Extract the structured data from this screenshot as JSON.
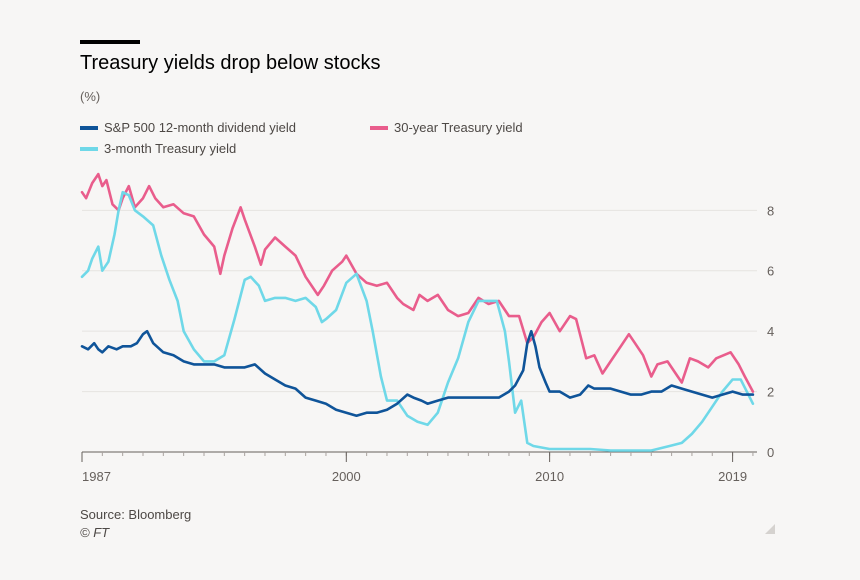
{
  "chart_data": {
    "type": "line",
    "title": "Treasury yields drop below stocks",
    "unit_label": "(%)",
    "xlabel": "",
    "ylabel": "(%)",
    "xlim": [
      1987,
      2020.2
    ],
    "ylim": [
      0,
      9.5
    ],
    "yticks": [
      0,
      2,
      4,
      6,
      8
    ],
    "xtick_labels": [
      {
        "x": 1987,
        "label": "1987"
      },
      {
        "x": 2000,
        "label": "2000"
      },
      {
        "x": 2010,
        "label": "2010"
      },
      {
        "x": 2019,
        "label": "2019"
      }
    ],
    "grid": true,
    "legend_position": "top-left",
    "series": [
      {
        "name": "S&P 500 12-month dividend yield",
        "color": "#0f5499",
        "points": [
          [
            1987.0,
            3.5
          ],
          [
            1987.3,
            3.4
          ],
          [
            1987.6,
            3.6
          ],
          [
            1987.8,
            3.4
          ],
          [
            1988.0,
            3.3
          ],
          [
            1988.3,
            3.5
          ],
          [
            1988.7,
            3.4
          ],
          [
            1989.0,
            3.5
          ],
          [
            1989.4,
            3.5
          ],
          [
            1989.7,
            3.6
          ],
          [
            1990.0,
            3.9
          ],
          [
            1990.2,
            4.0
          ],
          [
            1990.5,
            3.6
          ],
          [
            1991.0,
            3.3
          ],
          [
            1991.5,
            3.2
          ],
          [
            1992.0,
            3.0
          ],
          [
            1992.5,
            2.9
          ],
          [
            1993.0,
            2.9
          ],
          [
            1993.5,
            2.9
          ],
          [
            1994.0,
            2.8
          ],
          [
            1994.5,
            2.8
          ],
          [
            1995.0,
            2.8
          ],
          [
            1995.5,
            2.9
          ],
          [
            1996.0,
            2.6
          ],
          [
            1996.5,
            2.4
          ],
          [
            1997.0,
            2.2
          ],
          [
            1997.5,
            2.1
          ],
          [
            1998.0,
            1.8
          ],
          [
            1998.5,
            1.7
          ],
          [
            1999.0,
            1.6
          ],
          [
            1999.5,
            1.4
          ],
          [
            2000.0,
            1.3
          ],
          [
            2000.5,
            1.2
          ],
          [
            2001.0,
            1.3
          ],
          [
            2001.5,
            1.3
          ],
          [
            2002.0,
            1.4
          ],
          [
            2002.5,
            1.6
          ],
          [
            2003.0,
            1.9
          ],
          [
            2003.3,
            1.8
          ],
          [
            2003.7,
            1.7
          ],
          [
            2004.0,
            1.6
          ],
          [
            2004.5,
            1.7
          ],
          [
            2005.0,
            1.8
          ],
          [
            2005.5,
            1.8
          ],
          [
            2006.0,
            1.8
          ],
          [
            2006.5,
            1.8
          ],
          [
            2007.0,
            1.8
          ],
          [
            2007.5,
            1.8
          ],
          [
            2008.0,
            2.0
          ],
          [
            2008.3,
            2.2
          ],
          [
            2008.7,
            2.7
          ],
          [
            2008.9,
            3.6
          ],
          [
            2009.1,
            4.0
          ],
          [
            2009.3,
            3.5
          ],
          [
            2009.5,
            2.8
          ],
          [
            2009.8,
            2.3
          ],
          [
            2010.0,
            2.0
          ],
          [
            2010.5,
            2.0
          ],
          [
            2011.0,
            1.8
          ],
          [
            2011.5,
            1.9
          ],
          [
            2011.9,
            2.2
          ],
          [
            2012.2,
            2.1
          ],
          [
            2012.5,
            2.1
          ],
          [
            2013.0,
            2.1
          ],
          [
            2013.5,
            2.0
          ],
          [
            2014.0,
            1.9
          ],
          [
            2014.5,
            1.9
          ],
          [
            2015.0,
            2.0
          ],
          [
            2015.5,
            2.0
          ],
          [
            2016.0,
            2.2
          ],
          [
            2016.5,
            2.1
          ],
          [
            2017.0,
            2.0
          ],
          [
            2017.5,
            1.9
          ],
          [
            2018.0,
            1.8
          ],
          [
            2018.5,
            1.9
          ],
          [
            2019.0,
            2.0
          ],
          [
            2019.5,
            1.9
          ],
          [
            2020.0,
            1.9
          ]
        ]
      },
      {
        "name": "30-year Treasury yield",
        "color": "#e95d8c",
        "points": [
          [
            1987.0,
            8.6
          ],
          [
            1987.2,
            8.4
          ],
          [
            1987.5,
            8.9
          ],
          [
            1987.8,
            9.2
          ],
          [
            1988.0,
            8.8
          ],
          [
            1988.2,
            9.0
          ],
          [
            1988.5,
            8.2
          ],
          [
            1988.8,
            8.0
          ],
          [
            1989.0,
            8.4
          ],
          [
            1989.3,
            8.8
          ],
          [
            1989.6,
            8.1
          ],
          [
            1990.0,
            8.4
          ],
          [
            1990.3,
            8.8
          ],
          [
            1990.6,
            8.4
          ],
          [
            1991.0,
            8.1
          ],
          [
            1991.5,
            8.2
          ],
          [
            1992.0,
            7.9
          ],
          [
            1992.5,
            7.8
          ],
          [
            1993.0,
            7.2
          ],
          [
            1993.5,
            6.8
          ],
          [
            1993.8,
            5.9
          ],
          [
            1994.0,
            6.5
          ],
          [
            1994.4,
            7.4
          ],
          [
            1994.8,
            8.1
          ],
          [
            1995.0,
            7.7
          ],
          [
            1995.5,
            6.8
          ],
          [
            1995.8,
            6.2
          ],
          [
            1996.0,
            6.7
          ],
          [
            1996.5,
            7.1
          ],
          [
            1997.0,
            6.8
          ],
          [
            1997.5,
            6.5
          ],
          [
            1998.0,
            5.8
          ],
          [
            1998.6,
            5.2
          ],
          [
            1998.9,
            5.5
          ],
          [
            1999.3,
            6.0
          ],
          [
            1999.8,
            6.3
          ],
          [
            2000.0,
            6.5
          ],
          [
            2000.5,
            5.9
          ],
          [
            2001.0,
            5.6
          ],
          [
            2001.5,
            5.5
          ],
          [
            2002.0,
            5.6
          ],
          [
            2002.5,
            5.1
          ],
          [
            2002.8,
            4.9
          ],
          [
            2003.3,
            4.7
          ],
          [
            2003.6,
            5.2
          ],
          [
            2004.0,
            5.0
          ],
          [
            2004.5,
            5.2
          ],
          [
            2005.0,
            4.7
          ],
          [
            2005.5,
            4.5
          ],
          [
            2006.0,
            4.6
          ],
          [
            2006.5,
            5.1
          ],
          [
            2007.0,
            4.9
          ],
          [
            2007.5,
            5.0
          ],
          [
            2008.0,
            4.5
          ],
          [
            2008.5,
            4.5
          ],
          [
            2008.9,
            3.6
          ],
          [
            2009.2,
            3.8
          ],
          [
            2009.6,
            4.3
          ],
          [
            2010.0,
            4.6
          ],
          [
            2010.5,
            4.0
          ],
          [
            2011.0,
            4.5
          ],
          [
            2011.3,
            4.4
          ],
          [
            2011.8,
            3.1
          ],
          [
            2012.2,
            3.2
          ],
          [
            2012.6,
            2.6
          ],
          [
            2013.0,
            3.0
          ],
          [
            2013.5,
            3.5
          ],
          [
            2013.9,
            3.9
          ],
          [
            2014.2,
            3.6
          ],
          [
            2014.6,
            3.2
          ],
          [
            2015.0,
            2.5
          ],
          [
            2015.3,
            2.9
          ],
          [
            2015.8,
            3.0
          ],
          [
            2016.3,
            2.5
          ],
          [
            2016.5,
            2.3
          ],
          [
            2016.9,
            3.1
          ],
          [
            2017.3,
            3.0
          ],
          [
            2017.8,
            2.8
          ],
          [
            2018.2,
            3.1
          ],
          [
            2018.9,
            3.3
          ],
          [
            2019.3,
            2.9
          ],
          [
            2019.6,
            2.5
          ],
          [
            2020.0,
            2.0
          ]
        ]
      },
      {
        "name": "3-month Treasury yield",
        "color": "#6fd8e8",
        "points": [
          [
            1987.0,
            5.8
          ],
          [
            1987.3,
            6.0
          ],
          [
            1987.5,
            6.4
          ],
          [
            1987.8,
            6.8
          ],
          [
            1988.0,
            6.0
          ],
          [
            1988.3,
            6.3
          ],
          [
            1988.6,
            7.2
          ],
          [
            1988.8,
            8.0
          ],
          [
            1989.0,
            8.6
          ],
          [
            1989.3,
            8.5
          ],
          [
            1989.6,
            8.0
          ],
          [
            1990.0,
            7.8
          ],
          [
            1990.5,
            7.5
          ],
          [
            1990.9,
            6.5
          ],
          [
            1991.3,
            5.7
          ],
          [
            1991.7,
            5.0
          ],
          [
            1992.0,
            4.0
          ],
          [
            1992.5,
            3.4
          ],
          [
            1993.0,
            3.0
          ],
          [
            1993.5,
            3.0
          ],
          [
            1994.0,
            3.2
          ],
          [
            1994.5,
            4.4
          ],
          [
            1995.0,
            5.7
          ],
          [
            1995.3,
            5.8
          ],
          [
            1995.7,
            5.5
          ],
          [
            1996.0,
            5.0
          ],
          [
            1996.5,
            5.1
          ],
          [
            1997.0,
            5.1
          ],
          [
            1997.5,
            5.0
          ],
          [
            1998.0,
            5.1
          ],
          [
            1998.5,
            4.8
          ],
          [
            1998.8,
            4.3
          ],
          [
            1999.0,
            4.4
          ],
          [
            1999.5,
            4.7
          ],
          [
            2000.0,
            5.6
          ],
          [
            2000.5,
            5.9
          ],
          [
            2001.0,
            5.0
          ],
          [
            2001.3,
            4.0
          ],
          [
            2001.7,
            2.5
          ],
          [
            2002.0,
            1.7
          ],
          [
            2002.5,
            1.7
          ],
          [
            2003.0,
            1.2
          ],
          [
            2003.5,
            1.0
          ],
          [
            2004.0,
            0.9
          ],
          [
            2004.5,
            1.3
          ],
          [
            2005.0,
            2.3
          ],
          [
            2005.5,
            3.1
          ],
          [
            2006.0,
            4.3
          ],
          [
            2006.5,
            5.0
          ],
          [
            2007.0,
            5.0
          ],
          [
            2007.4,
            5.0
          ],
          [
            2007.8,
            4.0
          ],
          [
            2008.0,
            3.0
          ],
          [
            2008.3,
            1.3
          ],
          [
            2008.6,
            1.7
          ],
          [
            2008.9,
            0.3
          ],
          [
            2009.2,
            0.2
          ],
          [
            2009.6,
            0.15
          ],
          [
            2010.0,
            0.1
          ],
          [
            2011.0,
            0.1
          ],
          [
            2012.0,
            0.1
          ],
          [
            2013.0,
            0.05
          ],
          [
            2014.0,
            0.05
          ],
          [
            2015.0,
            0.05
          ],
          [
            2015.9,
            0.2
          ],
          [
            2016.5,
            0.3
          ],
          [
            2017.0,
            0.6
          ],
          [
            2017.5,
            1.0
          ],
          [
            2018.0,
            1.5
          ],
          [
            2018.5,
            2.0
          ],
          [
            2019.0,
            2.4
          ],
          [
            2019.4,
            2.4
          ],
          [
            2019.7,
            2.0
          ],
          [
            2020.0,
            1.6
          ]
        ]
      }
    ]
  },
  "source_text": "Source: Bloomberg",
  "credit_text": "© FT"
}
